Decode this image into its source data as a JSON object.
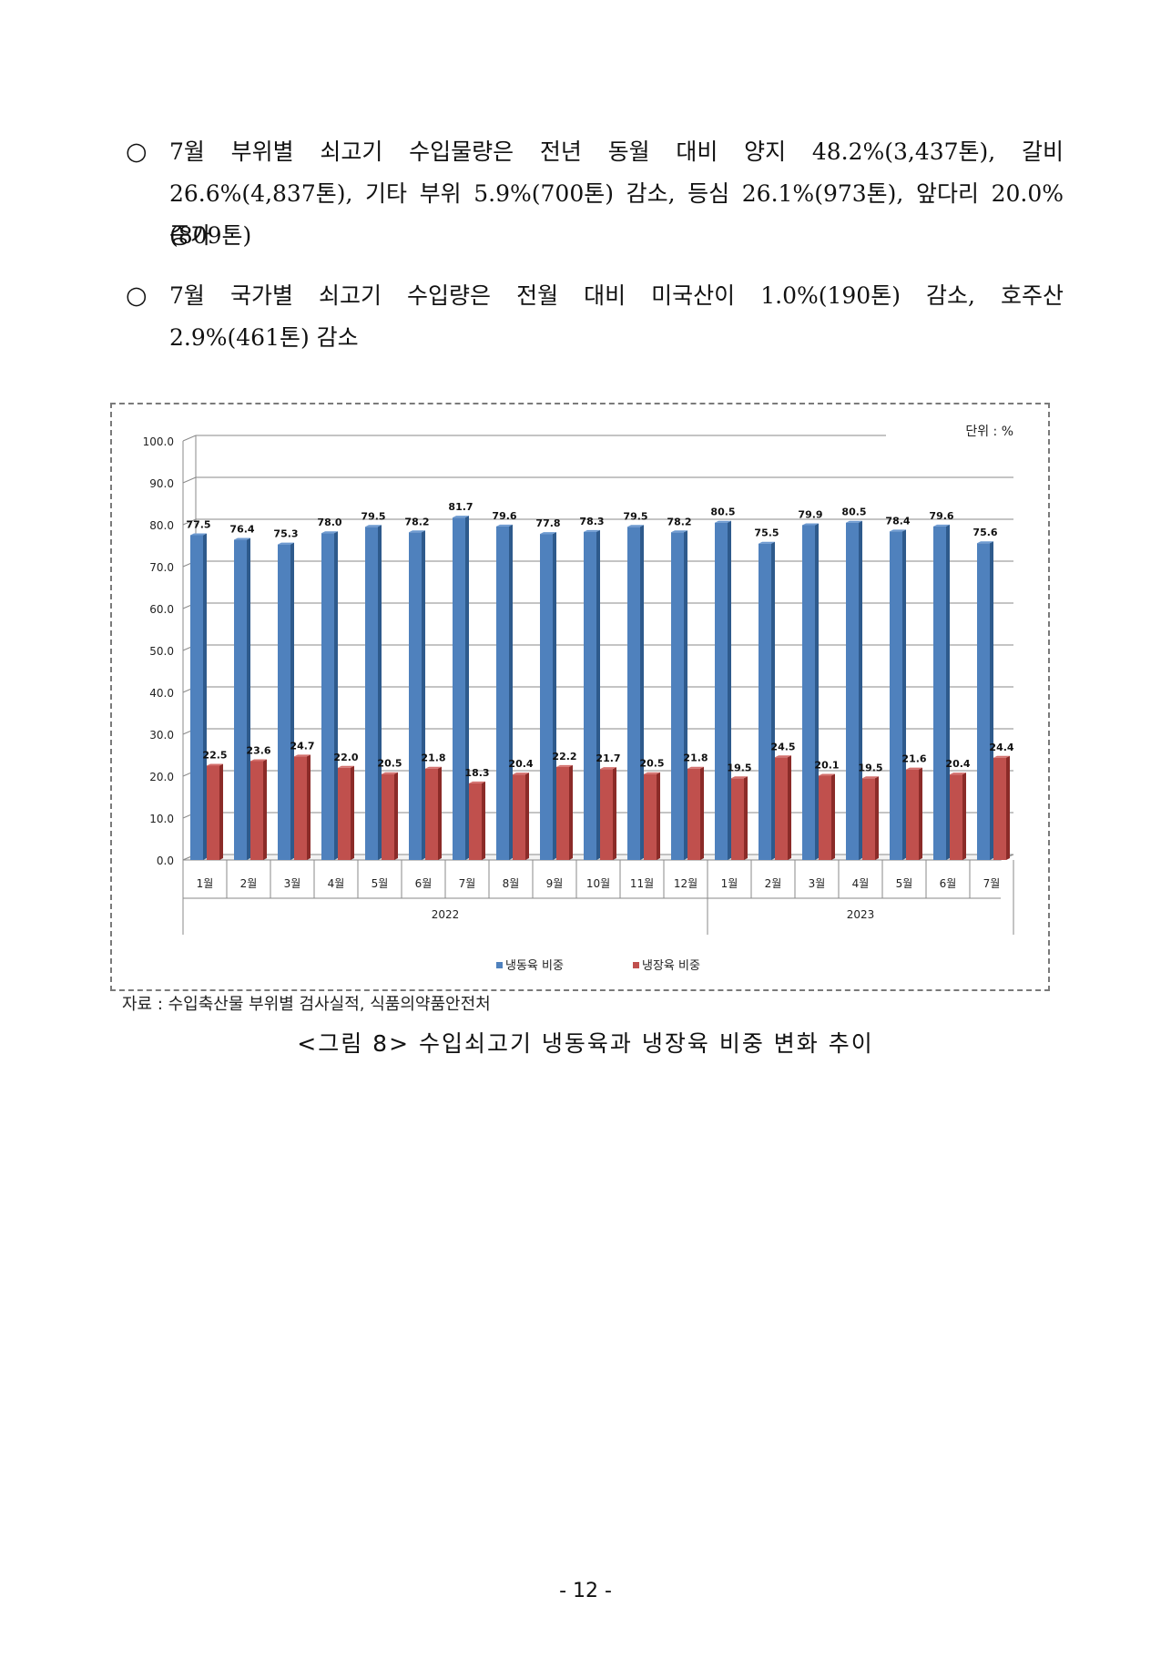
{
  "bullets": [
    {
      "mark": "○",
      "lines": [
        "7월 부위별 쇠고기 수입물량은 전년 동월 대비 양지 48.2%(3,437톤), 갈비",
        "26.6%(4,837톤), 기타 부위 5.9%(700톤) 감소, 등심 26.1%(973톤), 앞다리 20.0%(809톤)",
        "증가"
      ]
    },
    {
      "mark": "○",
      "lines": [
        "7월 국가별 쇠고기 수입량은 전월 대비 미국산이 1.0%(190톤) 감소, 호주산",
        "2.9%(461톤) 감소"
      ]
    }
  ],
  "chart_data": {
    "type": "bar",
    "unit_label": "단위 : %",
    "ylim": [
      0,
      100
    ],
    "yticks": [
      "0.0",
      "10.0",
      "20.0",
      "30.0",
      "40.0",
      "50.0",
      "60.0",
      "70.0",
      "80.0",
      "90.0",
      "100.0"
    ],
    "categories": [
      "1월",
      "2월",
      "3월",
      "4월",
      "5월",
      "6월",
      "7월",
      "8월",
      "9월",
      "10월",
      "11월",
      "12월",
      "1월",
      "2월",
      "3월",
      "4월",
      "5월",
      "6월",
      "7월"
    ],
    "groups": [
      {
        "label": "2022",
        "count": 12
      },
      {
        "label": "2023",
        "count": 7
      }
    ],
    "series": [
      {
        "name": "냉동육 비중",
        "color": "#4f81bd",
        "values": [
          77.5,
          76.4,
          75.3,
          78.0,
          79.5,
          78.2,
          81.7,
          79.6,
          77.8,
          78.3,
          79.5,
          78.2,
          80.5,
          75.5,
          79.9,
          80.5,
          78.4,
          79.6,
          75.6
        ],
        "labels": [
          "77.5",
          "76.4",
          "75.3",
          "78.0",
          "79.5",
          "78.2",
          "81.7",
          "79.6",
          "77.8",
          "78.3",
          "79.5",
          "78.2",
          "80.5",
          "75.5",
          "79.9",
          "80.5",
          "78.4",
          "79.6",
          "75.6"
        ]
      },
      {
        "name": "냉장육 비중",
        "color": "#c0504d",
        "values": [
          22.5,
          23.6,
          24.7,
          22.0,
          20.5,
          21.8,
          18.3,
          20.4,
          22.2,
          21.7,
          20.5,
          21.8,
          19.5,
          24.5,
          20.1,
          19.5,
          21.6,
          20.4,
          24.4
        ],
        "labels": [
          "22.5",
          "23.6",
          "24.7",
          "22.0",
          "20.5",
          "21.8",
          "18.3",
          "20.4",
          "22.2",
          "21.7",
          "20.5",
          "21.8",
          "19.5",
          "24.5",
          "20.1",
          "19.5",
          "21.6",
          "20.4",
          "24.4"
        ]
      }
    ],
    "legend_position": "bottom",
    "grid": true
  },
  "source_note": "자료 : 수입축산물 부위별 검사실적, 식품의약품안전처",
  "figure_caption": "<그림 8> 수입쇠고기 냉동육과 냉장육 비중 변화 추이",
  "page_number": "- 12 -"
}
